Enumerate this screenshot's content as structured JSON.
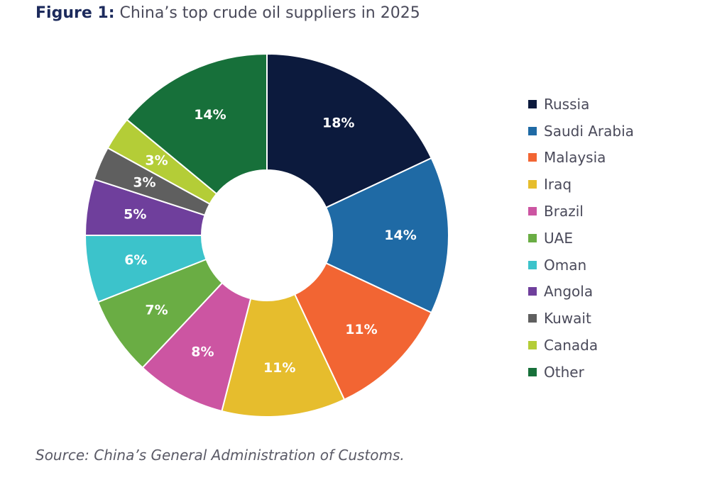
{
  "title": {
    "label": "Figure 1:",
    "text": "China’s top crude oil suppliers in 2025"
  },
  "source": "Source: China’s General Administration of Customs.",
  "chart_data": {
    "type": "pie",
    "donut": true,
    "legend_position": "right",
    "slices": [
      {
        "name": "Russia",
        "value": 18,
        "label": "18%",
        "color": "#0c1a3d"
      },
      {
        "name": "Saudi Arabia",
        "value": 14,
        "label": "14%",
        "color": "#1f6aa5"
      },
      {
        "name": "Malaysia",
        "value": 11,
        "label": "11%",
        "color": "#f26533"
      },
      {
        "name": "Iraq",
        "value": 11,
        "label": "11%",
        "color": "#e6bd2d"
      },
      {
        "name": "Brazil",
        "value": 8,
        "label": "8%",
        "color": "#cc55a2"
      },
      {
        "name": "UAE",
        "value": 7,
        "label": "7%",
        "color": "#6aad44"
      },
      {
        "name": "Oman",
        "value": 6,
        "label": "6%",
        "color": "#3cc3cb"
      },
      {
        "name": "Angola",
        "value": 5,
        "label": "5%",
        "color": "#6f3f9c"
      },
      {
        "name": "Kuwait",
        "value": 3,
        "label": "3%",
        "color": "#5f5f5f"
      },
      {
        "name": "Canada",
        "value": 3,
        "label": "3%",
        "color": "#b4cd37"
      },
      {
        "name": "Other",
        "value": 14,
        "label": "14%",
        "color": "#17703a"
      }
    ]
  }
}
